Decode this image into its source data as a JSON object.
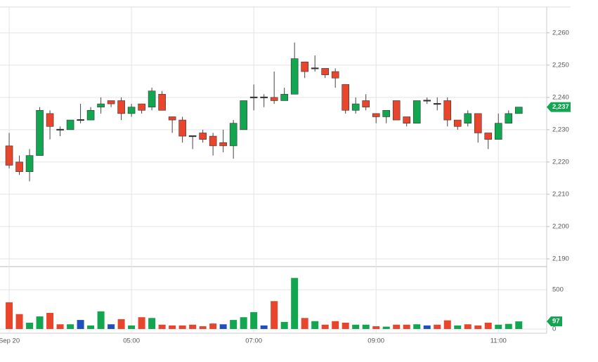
{
  "chart_data": {
    "type": "candlestick",
    "x": [
      3,
      3.1667,
      3.3333,
      3.5,
      3.6667,
      3.8333,
      4,
      4.1667,
      4.3333,
      4.5,
      4.6667,
      4.8333,
      5,
      5.1667,
      5.3333,
      5.5,
      5.6667,
      5.8333,
      6,
      6.1667,
      6.3333,
      6.5,
      6.6667,
      6.8333,
      7,
      7.1667,
      7.3333,
      7.5,
      7.6667,
      7.8333,
      8,
      8.1667,
      8.3333,
      8.5,
      8.6667,
      8.8333,
      9,
      9.1667,
      9.3333,
      9.5,
      9.6667,
      9.8333,
      10,
      10.1667,
      10.3333,
      10.5,
      10.6667,
      10.8333,
      11,
      11.1667,
      11.3333
    ],
    "open": [
      2225,
      2220,
      2217,
      2222,
      2235,
      2230,
      2230,
      2233,
      2233,
      2237,
      2239,
      2239,
      2235,
      2238,
      2237,
      2241,
      2234,
      2233,
      2228,
      2229,
      2228,
      2226,
      2225,
      2230,
      2240,
      2240,
      2240,
      2239,
      2241,
      2251,
      2249,
      2249,
      2248,
      2244,
      2236,
      2239,
      2235,
      2234,
      2239,
      2234,
      2232,
      2239,
      2238,
      2239,
      2233,
      2232,
      2235,
      2229,
      2227,
      2232,
      2235
    ],
    "high": [
      2229,
      2222,
      2224,
      2237,
      2236,
      2231,
      2233,
      2238,
      2237,
      2240,
      2239,
      2240,
      2238,
      2238,
      2243,
      2242,
      2234,
      2234,
      2228,
      2230,
      2229,
      2230,
      2233,
      2239,
      2244,
      2241,
      2248,
      2243,
      2257,
      2251,
      2253,
      2249,
      2249,
      2244,
      2240,
      2241,
      2235,
      2236,
      2239,
      2234,
      2239,
      2240,
      2240,
      2240,
      2233,
      2236,
      2235,
      2229,
      2235,
      2236,
      2237
    ],
    "low": [
      2218,
      2216,
      2214,
      2222,
      2227,
      2228,
      2230,
      2232,
      2233,
      2235,
      2237,
      2233,
      2234,
      2235,
      2236,
      2236,
      2229,
      2226,
      2224,
      2226,
      2222,
      2223,
      2221,
      2230,
      2236,
      2237,
      2238,
      2239,
      2241,
      2246,
      2248,
      2246,
      2243,
      2235,
      2235,
      2236,
      2232,
      2232,
      2233,
      2231,
      2232,
      2238,
      2236,
      2231,
      2230,
      2231,
      2226,
      2224,
      2227,
      2232,
      2235
    ],
    "close": [
      2219,
      2217,
      2222,
      2236,
      2231,
      2230,
      2233,
      2233,
      2236,
      2238,
      2238,
      2235,
      2237,
      2236,
      2242,
      2236,
      2233,
      2228,
      2228,
      2227,
      2225,
      2225,
      2232,
      2239,
      2240,
      2240,
      2239,
      2241,
      2252,
      2248,
      2249,
      2247,
      2246,
      2236,
      2238,
      2237,
      2234,
      2236,
      2233,
      2232,
      2239,
      2239,
      2238,
      2233,
      2231,
      2235,
      2229,
      2227,
      2232,
      2235,
      2237
    ],
    "volume": [
      340,
      190,
      80,
      160,
      205,
      60,
      60,
      115,
      45,
      225,
      60,
      125,
      45,
      150,
      140,
      55,
      45,
      45,
      55,
      35,
      70,
      60,
      115,
      150,
      215,
      45,
      355,
      90,
      650,
      140,
      100,
      55,
      100,
      80,
      55,
      55,
      35,
      30,
      55,
      55,
      60,
      45,
      55,
      110,
      45,
      60,
      45,
      80,
      55,
      65,
      97
    ],
    "volume_colors": [
      "#e8452c",
      "#e8452c",
      "#12a650",
      "#12a650",
      "#e8452c",
      "#e8452c",
      "#12a650",
      "#1f4fbf",
      "#12a650",
      "#12a650",
      "#1f4fbf",
      "#e8452c",
      "#12a650",
      "#e8452c",
      "#12a650",
      "#e8452c",
      "#e8452c",
      "#e8452c",
      "#e8452c",
      "#e8452c",
      "#e8452c",
      "#1f4fbf",
      "#12a650",
      "#12a650",
      "#12a650",
      "#1f4fbf",
      "#e8452c",
      "#12a650",
      "#12a650",
      "#e8452c",
      "#12a650",
      "#e8452c",
      "#e8452c",
      "#e8452c",
      "#12a650",
      "#12a650",
      "#e8452c",
      "#12a650",
      "#e8452c",
      "#e8452c",
      "#12a650",
      "#1f4fbf",
      "#e8452c",
      "#e8452c",
      "#12a650",
      "#e8452c",
      "#e8452c",
      "#e8452c",
      "#12a650",
      "#12a650",
      "#12a650"
    ],
    "up_color": "#12a650",
    "down_color": "#e8452c",
    "flat_color": "#333333",
    "last_close_label": "2,237",
    "xlim": [
      2.85,
      11.79
    ],
    "xticks": [
      {
        "value": 3,
        "label": "Sep 20"
      },
      {
        "value": 5,
        "label": "05:00"
      },
      {
        "value": 7,
        "label": "07:00"
      },
      {
        "value": 9,
        "label": "09:00"
      },
      {
        "value": 11,
        "label": "11:00"
      }
    ],
    "ylim": [
      2187.6,
      2268
    ],
    "yticks": [
      {
        "value": 2190,
        "label": "2,190"
      },
      {
        "value": 2200,
        "label": "2,200"
      },
      {
        "value": 2210,
        "label": "2,210"
      },
      {
        "value": 2220,
        "label": "2,220"
      },
      {
        "value": 2230,
        "label": "2,230"
      },
      {
        "value": 2240,
        "label": "2,240"
      },
      {
        "value": 2250,
        "label": "2,250"
      },
      {
        "value": 2260,
        "label": "2,260"
      }
    ],
    "vlim": [
      -54,
      795
    ],
    "vticks": [
      0,
      500
    ],
    "grid": true
  }
}
